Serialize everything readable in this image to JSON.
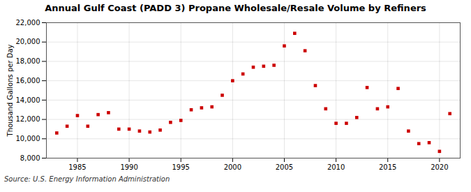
{
  "chart_data": {
    "type": "scatter",
    "title": "Annual Gulf Coast (PADD 3) Propane Wholesale/Resale Volume by Refiners",
    "ylabel": "Thousand Gallons per Day",
    "source": "Source: U.S. Energy Information Administration",
    "x": [
      1983,
      1984,
      1985,
      1986,
      1987,
      1988,
      1989,
      1990,
      1991,
      1992,
      1993,
      1994,
      1995,
      1996,
      1997,
      1998,
      1999,
      2000,
      2001,
      2002,
      2003,
      2004,
      2005,
      2006,
      2007,
      2008,
      2009,
      2010,
      2011,
      2012,
      2013,
      2014,
      2015,
      2016,
      2017,
      2018,
      2019,
      2020,
      2021
    ],
    "values": [
      10600,
      11300,
      12400,
      11300,
      12500,
      12700,
      11000,
      11000,
      10800,
      10700,
      10900,
      11700,
      11900,
      13000,
      13200,
      13300,
      14500,
      16000,
      16700,
      17400,
      17500,
      17600,
      19600,
      20900,
      19100,
      15500,
      13100,
      11600,
      11600,
      12200,
      15300,
      13100,
      13300,
      15200,
      10800,
      9500,
      9600,
      8700,
      12600
    ],
    "color": "#cc0000",
    "marker": "square",
    "xlim": [
      1982,
      2022
    ],
    "xticks": [
      1985,
      1990,
      1995,
      2000,
      2005,
      2010,
      2015,
      2020
    ],
    "ylim": [
      8000,
      22000
    ],
    "yticks": [
      {
        "value": 8000,
        "label": "8,000"
      },
      {
        "value": 10000,
        "label": "10,000"
      },
      {
        "value": 12000,
        "label": "12,000"
      },
      {
        "value": 14000,
        "label": "14,000"
      },
      {
        "value": 16000,
        "label": "16,000"
      },
      {
        "value": 18000,
        "label": "18,000"
      },
      {
        "value": 20000,
        "label": "20,000"
      },
      {
        "value": 22000,
        "label": "22,000"
      }
    ],
    "grid": true
  }
}
